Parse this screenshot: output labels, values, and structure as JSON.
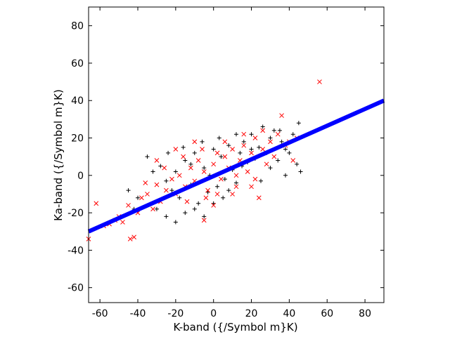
{
  "chart_data": {
    "type": "scatter",
    "title": "",
    "xlabel": "K-band ({/Symbol m}K)",
    "ylabel": "Ka-band ({/Symbol m}K)",
    "xlim": [
      -66,
      90
    ],
    "ylim": [
      -68,
      90
    ],
    "xticks": [
      -60,
      -40,
      -20,
      0,
      20,
      40,
      60,
      80
    ],
    "yticks": [
      -60,
      -40,
      -20,
      0,
      20,
      40,
      60,
      80
    ],
    "grid": false,
    "legend": "none",
    "series": [
      {
        "marker": "plus",
        "color": "#000000",
        "points": [
          [
            -35,
            10
          ],
          [
            -28,
            5
          ],
          [
            -25,
            -3
          ],
          [
            -22,
            -8
          ],
          [
            -20,
            2
          ],
          [
            -18,
            -12
          ],
          [
            -15,
            8
          ],
          [
            -12,
            -5
          ],
          [
            -10,
            12
          ],
          [
            -8,
            -15
          ],
          [
            -5,
            4
          ],
          [
            -3,
            -9
          ],
          [
            0,
            14
          ],
          [
            2,
            -6
          ],
          [
            4,
            10
          ],
          [
            6,
            -2
          ],
          [
            8,
            16
          ],
          [
            10,
            3
          ],
          [
            12,
            -4
          ],
          [
            14,
            12
          ],
          [
            16,
            18
          ],
          [
            18,
            7
          ],
          [
            20,
            22
          ],
          [
            22,
            9
          ],
          [
            24,
            15
          ],
          [
            26,
            26
          ],
          [
            28,
            12
          ],
          [
            30,
            20
          ],
          [
            32,
            24
          ],
          [
            34,
            8
          ],
          [
            36,
            18
          ],
          [
            38,
            14
          ],
          [
            40,
            12
          ],
          [
            42,
            22
          ],
          [
            44,
            6
          ],
          [
            45,
            28
          ],
          [
            46,
            2
          ],
          [
            -40,
            -12
          ],
          [
            -30,
            -18
          ],
          [
            -25,
            -22
          ],
          [
            -20,
            -25
          ],
          [
            -15,
            -20
          ],
          [
            -10,
            -18
          ],
          [
            -5,
            -22
          ],
          [
            0,
            -15
          ],
          [
            5,
            -12
          ],
          [
            -45,
            -8
          ],
          [
            -32,
            2
          ],
          [
            -24,
            12
          ],
          [
            -16,
            15
          ],
          [
            -6,
            18
          ],
          [
            3,
            20
          ],
          [
            12,
            22
          ],
          [
            20,
            14
          ],
          [
            30,
            4
          ],
          [
            38,
            0
          ],
          [
            -12,
            6
          ],
          [
            -2,
            0
          ],
          [
            8,
            -8
          ],
          [
            15,
            5
          ],
          [
            25,
            -3
          ],
          [
            35,
            24
          ],
          [
            -42,
            -18
          ]
        ]
      },
      {
        "marker": "cross",
        "color": "#ff0000",
        "points": [
          [
            -66,
            -34
          ],
          [
            -62,
            -15
          ],
          [
            -58,
            -27
          ],
          [
            -55,
            -26
          ],
          [
            -52,
            -24
          ],
          [
            -50,
            -22
          ],
          [
            -48,
            -25
          ],
          [
            -45,
            -16
          ],
          [
            -44,
            -34
          ],
          [
            -42,
            -33
          ],
          [
            -40,
            -20
          ],
          [
            -38,
            -12
          ],
          [
            -35,
            -10
          ],
          [
            -32,
            -18
          ],
          [
            -30,
            -5
          ],
          [
            -28,
            -14
          ],
          [
            -25,
            -8
          ],
          [
            -22,
            -2
          ],
          [
            -20,
            -10
          ],
          [
            -18,
            0
          ],
          [
            -15,
            -6
          ],
          [
            -12,
            4
          ],
          [
            -10,
            -3
          ],
          [
            -8,
            8
          ],
          [
            -5,
            2
          ],
          [
            -3,
            -8
          ],
          [
            0,
            6
          ],
          [
            2,
            12
          ],
          [
            4,
            -2
          ],
          [
            6,
            10
          ],
          [
            8,
            4
          ],
          [
            10,
            14
          ],
          [
            12,
            0
          ],
          [
            14,
            8
          ],
          [
            16,
            16
          ],
          [
            18,
            2
          ],
          [
            20,
            12
          ],
          [
            22,
            20
          ],
          [
            24,
            -12
          ],
          [
            26,
            14
          ],
          [
            28,
            6
          ],
          [
            30,
            18
          ],
          [
            32,
            10
          ],
          [
            34,
            22
          ],
          [
            36,
            32
          ],
          [
            38,
            16
          ],
          [
            40,
            18
          ],
          [
            42,
            8
          ],
          [
            44,
            20
          ],
          [
            56,
            50
          ],
          [
            -5,
            -24
          ],
          [
            -10,
            18
          ],
          [
            0,
            -16
          ],
          [
            10,
            -10
          ],
          [
            20,
            -6
          ],
          [
            -20,
            14
          ],
          [
            -30,
            8
          ],
          [
            -36,
            -4
          ],
          [
            -26,
            4
          ],
          [
            -16,
            10
          ],
          [
            -6,
            14
          ],
          [
            6,
            18
          ],
          [
            16,
            22
          ],
          [
            26,
            24
          ],
          [
            -14,
            -14
          ],
          [
            -4,
            -12
          ],
          [
            2,
            -10
          ],
          [
            12,
            -6
          ],
          [
            22,
            -2
          ]
        ]
      },
      {
        "type": "fit-line",
        "color": "#0000ff",
        "points": [
          [
            -66,
            -30
          ],
          [
            90,
            40
          ]
        ]
      }
    ]
  }
}
